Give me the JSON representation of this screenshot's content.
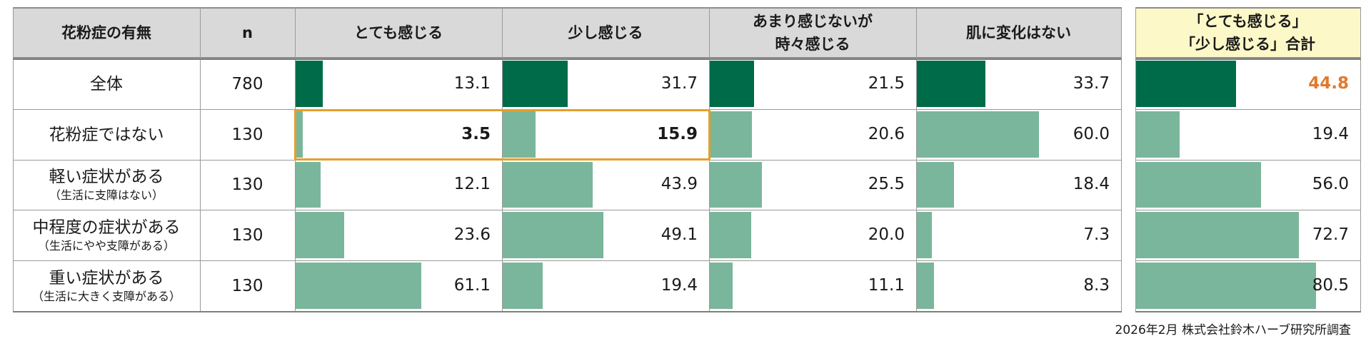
{
  "chart_data": {
    "type": "table",
    "title": "",
    "header": {
      "group_label": "花粉症の有無",
      "n_label": "n",
      "columns": [
        [
          "とても感じる"
        ],
        [
          "少し感じる"
        ],
        [
          "あまり感じないが",
          "時々感じる"
        ],
        [
          "肌に変化はない"
        ]
      ],
      "sum_column": [
        "「とても感じる」",
        "「少し感じる」合計"
      ]
    },
    "x_max": 100,
    "rows": [
      {
        "label": "全体",
        "sub": "",
        "n": "780",
        "values": [
          13.1,
          31.7,
          21.5,
          33.7
        ],
        "sum": 44.8,
        "is_total": true
      },
      {
        "label": "花粉症ではない",
        "sub": "",
        "n": "130",
        "values": [
          3.5,
          15.9,
          20.6,
          60.0
        ],
        "sum": 19.4,
        "is_total": false
      },
      {
        "label": "軽い症状がある",
        "sub": "（生活に支障はない）",
        "n": "130",
        "values": [
          12.1,
          43.9,
          25.5,
          18.4
        ],
        "sum": 56.0,
        "is_total": false
      },
      {
        "label": "中程度の症状がある",
        "sub": "（生活にやや支障がある）",
        "n": "130",
        "values": [
          23.6,
          49.1,
          20.0,
          7.3
        ],
        "sum": 72.7,
        "is_total": false
      },
      {
        "label": "重い症状がある",
        "sub": "（生活に大きく支障がある）",
        "n": "130",
        "values": [
          61.1,
          19.4,
          11.1,
          8.3
        ],
        "sum": 80.5,
        "is_total": false
      }
    ],
    "highlight": {
      "row": 1,
      "columns": [
        0,
        1
      ]
    }
  },
  "colors": {
    "total_bar": "#006b48",
    "sub_bar": "#7ab69b",
    "header_bg": "#d9d9d9",
    "sum_header_bg": "#fdf8c8",
    "highlight_border": "#e3a02b",
    "accent_value": "#e07a2e"
  },
  "source_note": "2026年2月 株式会社鈴木ハーブ研究所調査"
}
